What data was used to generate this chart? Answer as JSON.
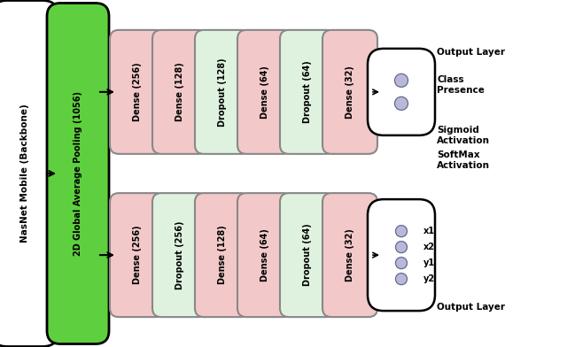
{
  "fig_width": 6.4,
  "fig_height": 3.92,
  "dpi": 100,
  "bg_color": "#ffffff",
  "backbone_label": "NasNet Mobile (Backbone)",
  "backbone_color": "#ffffff",
  "backbone_stroke": "#000000",
  "pooling_label": "2D Global Average Pooling (1056)",
  "pooling_color": "#5ecf3e",
  "pooling_stroke": "#000000",
  "top_layers": [
    {
      "label": "Dense (256)",
      "color": "#f2c8c8",
      "stroke": "#888888"
    },
    {
      "label": "Dense (128)",
      "color": "#f2c8c8",
      "stroke": "#888888"
    },
    {
      "label": "Dropout (128)",
      "color": "#dff2df",
      "stroke": "#888888"
    },
    {
      "label": "Dense (64)",
      "color": "#f2c8c8",
      "stroke": "#888888"
    },
    {
      "label": "Dropout (64)",
      "color": "#dff2df",
      "stroke": "#888888"
    },
    {
      "label": "Dense (32)",
      "color": "#f2c8c8",
      "stroke": "#888888"
    }
  ],
  "bot_layers": [
    {
      "label": "Dense (256)",
      "color": "#f2c8c8",
      "stroke": "#888888"
    },
    {
      "label": "Dropout (256)",
      "color": "#dff2df",
      "stroke": "#888888"
    },
    {
      "label": "Dense (128)",
      "color": "#f2c8c8",
      "stroke": "#888888"
    },
    {
      "label": "Dense (64)",
      "color": "#f2c8c8",
      "stroke": "#888888"
    },
    {
      "label": "Dropout (64)",
      "color": "#dff2df",
      "stroke": "#888888"
    },
    {
      "label": "Dense (32)",
      "color": "#f2c8c8",
      "stroke": "#888888"
    }
  ],
  "node_labels_bot": [
    "x1",
    "x2",
    "y1",
    "y2"
  ],
  "right_labels_top": [
    "Output Layer",
    "Class\nPresence",
    "Sigmoid\nActivation"
  ],
  "right_labels_bot": [
    "SoftMax\nActivation",
    "Output Layer"
  ],
  "font_size_layer": 7.0,
  "font_size_right": 7.5
}
